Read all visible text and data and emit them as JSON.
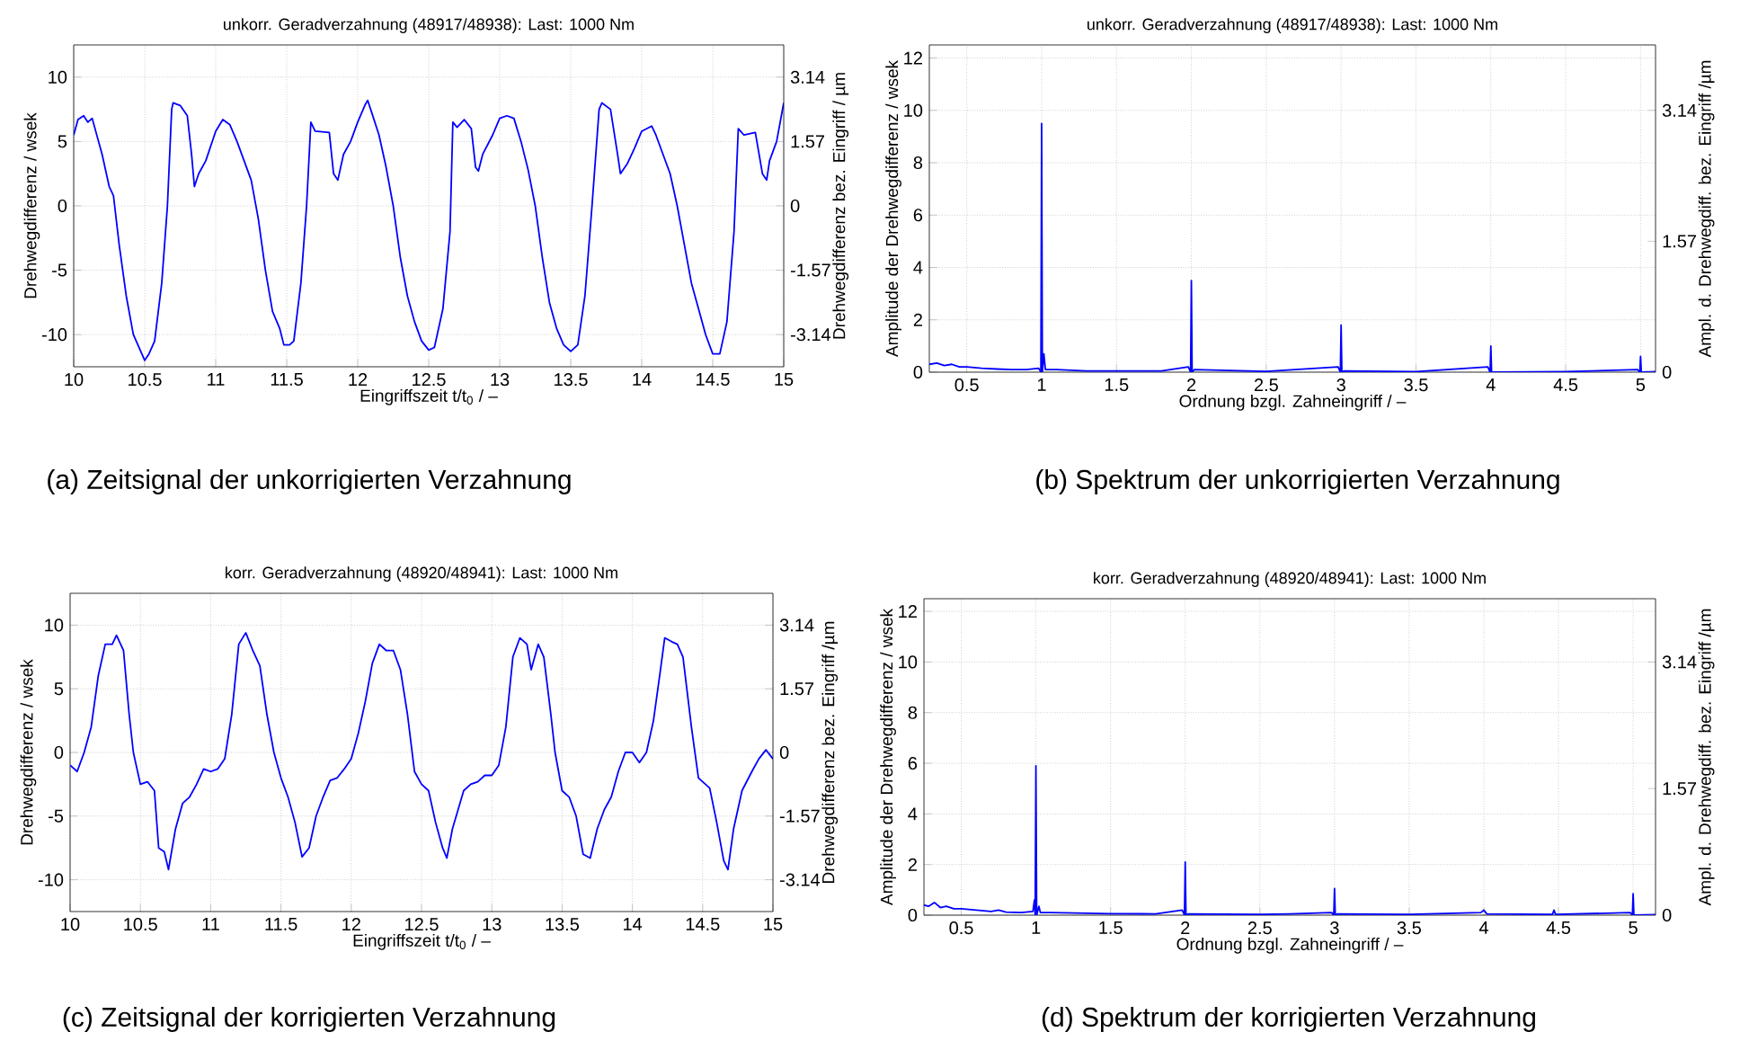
{
  "chart_data": [
    {
      "type": "line",
      "title": "unkorr. Geradverzahnung (48917/48938): Last: 1000 Nm",
      "xlabel": "Eingriffszeit t/t$_{0}$ / –",
      "ylabel": "Drehwegdifferenz / wsek",
      "y2label": "Drehwegdifferenz bez. Eingriff / µm",
      "annotations": [
        "(a)  Zeitsignal der unkorrigierten Verzahnung"
      ],
      "series": [
        {
          "color": "#0000ff",
          "x": [
            10.0,
            10.03,
            10.07,
            10.1,
            10.13,
            10.2,
            10.25,
            10.28,
            10.32,
            10.37,
            10.42,
            10.46,
            10.5,
            10.53,
            10.57,
            10.62,
            10.66,
            10.69,
            10.7,
            10.75,
            10.8,
            10.83,
            10.85,
            10.88,
            10.93,
            11.0,
            11.05,
            11.1,
            11.15,
            11.2,
            11.25,
            11.3,
            11.35,
            11.4,
            11.45,
            11.48,
            11.52,
            11.55,
            11.6,
            11.64,
            11.67,
            11.7,
            11.8,
            11.83,
            11.86,
            11.9,
            11.95,
            12.0,
            12.05,
            12.07,
            12.1,
            12.15,
            12.2,
            12.25,
            12.3,
            12.35,
            12.4,
            12.45,
            12.5,
            12.54,
            12.6,
            12.65,
            12.67,
            12.7,
            12.75,
            12.8,
            12.83,
            12.85,
            12.88,
            12.95,
            13.0,
            13.05,
            13.1,
            13.15,
            13.2,
            13.25,
            13.3,
            13.35,
            13.4,
            13.45,
            13.5,
            13.55,
            13.6,
            13.65,
            13.7,
            13.72,
            13.78,
            13.83,
            13.85,
            13.9,
            13.95,
            14.0,
            14.07,
            14.1,
            14.15,
            14.2,
            14.25,
            14.3,
            14.35,
            14.4,
            14.45,
            14.5,
            14.55,
            14.6,
            14.65,
            14.68,
            14.72,
            14.8,
            14.85,
            14.88,
            14.9,
            14.95,
            15.0
          ],
          "values": [
            5.5,
            6.7,
            7.0,
            6.5,
            6.8,
            4.0,
            1.5,
            0.8,
            -3,
            -7,
            -10,
            -11,
            -12,
            -11.5,
            -10.5,
            -6,
            0,
            7.5,
            8.0,
            7.8,
            7.0,
            4.0,
            1.5,
            2.5,
            3.5,
            5.8,
            6.7,
            6.3,
            5.0,
            3.5,
            2.0,
            -1,
            -5,
            -8.2,
            -9.5,
            -10.8,
            -10.8,
            -10.5,
            -6,
            0,
            6.5,
            5.8,
            5.7,
            2.5,
            2.0,
            4.0,
            5.0,
            6.5,
            7.8,
            8.2,
            7.2,
            5.5,
            3.0,
            0,
            -4,
            -7,
            -9,
            -10.5,
            -11.2,
            -11,
            -8,
            -2,
            6.5,
            6.1,
            6.7,
            6.0,
            3.0,
            2.7,
            4.0,
            5.5,
            6.8,
            7.0,
            6.8,
            5.0,
            2.8,
            0,
            -4,
            -7.5,
            -9.5,
            -10.8,
            -11.3,
            -10.8,
            -7,
            0,
            7.5,
            8.0,
            7.5,
            4.0,
            2.5,
            3.3,
            4.5,
            5.8,
            6.2,
            5.5,
            4.0,
            2.5,
            0,
            -3,
            -6,
            -8,
            -10,
            -11.5,
            -11.5,
            -9,
            -2,
            6.0,
            5.5,
            5.7,
            2.5,
            2.0,
            3.5,
            5.0,
            8.0
          ]
        }
      ],
      "xlim": [
        10,
        15
      ],
      "ylim": [
        -12.5,
        12.5
      ],
      "xticks": [
        10,
        10.5,
        11,
        11.5,
        12,
        12.5,
        13,
        13.5,
        14,
        14.5,
        15
      ],
      "yticks": [
        -10,
        -5,
        0,
        5,
        10
      ],
      "y2lim": [
        -3.925,
        3.925
      ],
      "y2ticks": [
        -3.14,
        -1.57,
        0,
        1.57,
        3.14
      ],
      "grid": true
    },
    {
      "type": "line",
      "title": "unkorr. Geradverzahnung (48917/48938): Last: 1000 Nm",
      "xlabel": "Ordnung bzgl. Zahneingriff / –",
      "ylabel": "Amplitude der Drehwegdifferenz / wsek",
      "y2label": "Ampl. d. Drehwegdiff. bez. Eingriff /µm",
      "annotations": [
        "(b)  Spektrum der unkorrigierten Verzahnung"
      ],
      "series": [
        {
          "color": "#0000ff",
          "x": [
            0.25,
            0.3,
            0.35,
            0.4,
            0.45,
            0.5,
            0.6,
            0.7,
            0.8,
            0.9,
            0.98,
            0.995,
            1.0,
            1.005,
            1.015,
            1.025,
            1.1,
            1.3,
            1.5,
            1.8,
            1.98,
            1.995,
            2.0,
            2.005,
            2.02,
            2.5,
            2.98,
            2.995,
            3.0,
            3.005,
            3.02,
            3.5,
            3.98,
            3.995,
            4.0,
            4.005,
            4.5,
            4.98,
            4.995,
            5.0,
            5.005,
            5.1
          ],
          "values": [
            0.3,
            0.35,
            0.25,
            0.3,
            0.2,
            0.2,
            0.15,
            0.12,
            0.1,
            0.1,
            0.15,
            0,
            9.5,
            0,
            0.7,
            0.1,
            0.1,
            0.05,
            0.05,
            0.05,
            0.2,
            0,
            3.5,
            0,
            0.1,
            0.03,
            0.2,
            0,
            1.8,
            0,
            0.05,
            0.02,
            0.2,
            0,
            1.0,
            0,
            0.02,
            0.1,
            0,
            0.6,
            0,
            0.02
          ]
        }
      ],
      "xlim": [
        0.25,
        5.1
      ],
      "ylim": [
        0,
        12.5
      ],
      "xticks": [
        0.5,
        1,
        1.5,
        2,
        2.5,
        3,
        3.5,
        4,
        4.5,
        5
      ],
      "yticks": [
        0,
        2,
        4,
        6,
        8,
        10,
        12
      ],
      "y2lim": [
        0,
        3.925
      ],
      "y2ticks": [
        0,
        1.57,
        3.14
      ],
      "grid": true
    },
    {
      "type": "line",
      "title": "korr. Geradverzahnung (48920/48941): Last: 1000 Nm",
      "xlabel": "Eingriffszeit t/t$_{0}$ / –",
      "ylabel": "Drehwegdifferenz / wsek",
      "y2label": "Drehwegdifferenz bez. Eingriff  /µm",
      "annotations": [
        "(c)  Zeitsignal der korrigierten Verzahnung"
      ],
      "series": [
        {
          "color": "#0000ff",
          "x": [
            10.0,
            10.05,
            10.1,
            10.15,
            10.2,
            10.25,
            10.3,
            10.33,
            10.38,
            10.42,
            10.45,
            10.5,
            10.55,
            10.6,
            10.63,
            10.67,
            10.7,
            10.75,
            10.8,
            10.85,
            10.9,
            10.95,
            11.0,
            11.05,
            11.1,
            11.15,
            11.2,
            11.25,
            11.3,
            11.35,
            11.4,
            11.45,
            11.5,
            11.55,
            11.6,
            11.65,
            11.7,
            11.75,
            11.8,
            11.85,
            11.9,
            11.95,
            12.0,
            12.05,
            12.1,
            12.15,
            12.2,
            12.25,
            12.3,
            12.35,
            12.4,
            12.45,
            12.5,
            12.55,
            12.6,
            12.65,
            12.68,
            12.72,
            12.8,
            12.85,
            12.9,
            12.95,
            13.0,
            13.05,
            13.1,
            13.15,
            13.2,
            13.25,
            13.28,
            13.33,
            13.37,
            13.42,
            13.45,
            13.5,
            13.55,
            13.6,
            13.65,
            13.7,
            13.75,
            13.8,
            13.85,
            13.9,
            13.95,
            14.0,
            14.05,
            14.1,
            14.15,
            14.2,
            14.23,
            14.28,
            14.32,
            14.36,
            14.42,
            14.47,
            14.5,
            14.55,
            14.6,
            14.65,
            14.68,
            14.72,
            14.78,
            14.85,
            14.9,
            14.95,
            15.0
          ],
          "values": [
            -1,
            -1.5,
            0,
            2.0,
            6.0,
            8.5,
            8.5,
            9.2,
            8.0,
            3,
            0,
            -2.5,
            -2.3,
            -3.0,
            -7.5,
            -7.8,
            -9.2,
            -6,
            -4,
            -3.5,
            -2.5,
            -1.3,
            -1.5,
            -1.3,
            -0.5,
            3.0,
            8.5,
            9.4,
            8.0,
            6.8,
            3,
            0,
            -2,
            -3.5,
            -5.5,
            -8.2,
            -7.5,
            -5,
            -3.5,
            -2.2,
            -2.0,
            -1.3,
            -0.5,
            1.5,
            4.0,
            7.0,
            8.5,
            8.0,
            8.0,
            6.5,
            3.0,
            -1.5,
            -2.5,
            -3.0,
            -5.5,
            -7.5,
            -8.3,
            -6,
            -3,
            -2.5,
            -2.3,
            -1.8,
            -1.8,
            -1.0,
            2.0,
            7.5,
            9.0,
            8.5,
            6.5,
            8.5,
            7.5,
            3.0,
            0,
            -3,
            -3.5,
            -5,
            -8,
            -8.3,
            -6,
            -4.5,
            -3.5,
            -1.5,
            0,
            0,
            -0.8,
            0,
            2.5,
            6.5,
            9.0,
            8.7,
            8.5,
            7.5,
            2.0,
            -2.0,
            -2.3,
            -2.8,
            -5.5,
            -8.5,
            -9.2,
            -6,
            -3,
            -1.5,
            -0.5,
            0.2,
            -0.5
          ]
        }
      ],
      "xlim": [
        10,
        15
      ],
      "ylim": [
        -12.5,
        12.5
      ],
      "xticks": [
        10,
        10.5,
        11,
        11.5,
        12,
        12.5,
        13,
        13.5,
        14,
        14.5,
        15
      ],
      "yticks": [
        -10,
        -5,
        0,
        5,
        10
      ],
      "y2lim": [
        -3.925,
        3.925
      ],
      "y2ticks": [
        -3.14,
        -1.57,
        0,
        1.57,
        3.14
      ],
      "grid": true
    },
    {
      "type": "line",
      "title": "korr. Geradverzahnung (48920/48941): Last: 1000 Nm",
      "xlabel": "Ordnung bzgl. Zahneingriff / –",
      "ylabel": "Amplitude der Drehwegdifferenz / wsek",
      "y2label": "Ampl. d. Drehwegdiff. bez. Eingriff /µm",
      "annotations": [
        "(d)  Spektrum der korrigierten Verzahnung"
      ],
      "series": [
        {
          "color": "#0000ff",
          "x": [
            0.25,
            0.28,
            0.32,
            0.36,
            0.4,
            0.45,
            0.5,
            0.6,
            0.7,
            0.75,
            0.8,
            0.9,
            0.98,
            0.99,
            0.995,
            1.0,
            1.005,
            1.02,
            1.03,
            1.1,
            1.3,
            1.5,
            1.8,
            1.98,
            1.995,
            2.0,
            2.005,
            2.02,
            2.5,
            2.7,
            2.98,
            2.995,
            3.0,
            3.005,
            3.02,
            3.5,
            3.98,
            4.0,
            4.02,
            4.46,
            4.47,
            4.48,
            4.98,
            4.995,
            5.0,
            5.005,
            5.15
          ],
          "values": [
            0.4,
            0.35,
            0.5,
            0.3,
            0.35,
            0.25,
            0.25,
            0.2,
            0.15,
            0.2,
            0.12,
            0.1,
            0.15,
            0.6,
            0,
            5.9,
            0,
            0.35,
            0.1,
            0.1,
            0.08,
            0.06,
            0.05,
            0.2,
            0,
            2.1,
            0,
            0.05,
            0.03,
            0.05,
            0.1,
            0,
            1.05,
            0,
            0.05,
            0.03,
            0.1,
            0.2,
            0.05,
            0.03,
            0.2,
            0.03,
            0.1,
            0,
            0.85,
            0,
            0.02
          ]
        }
      ],
      "xlim": [
        0.25,
        5.15
      ],
      "ylim": [
        0,
        12.5
      ],
      "xticks": [
        0.5,
        1,
        1.5,
        2,
        2.5,
        3,
        3.5,
        4,
        4.5,
        5
      ],
      "yticks": [
        0,
        2,
        4,
        6,
        8,
        10,
        12
      ],
      "y2lim": [
        0,
        3.925
      ],
      "y2ticks": [
        0,
        1.57,
        3.14
      ],
      "grid": true
    }
  ]
}
